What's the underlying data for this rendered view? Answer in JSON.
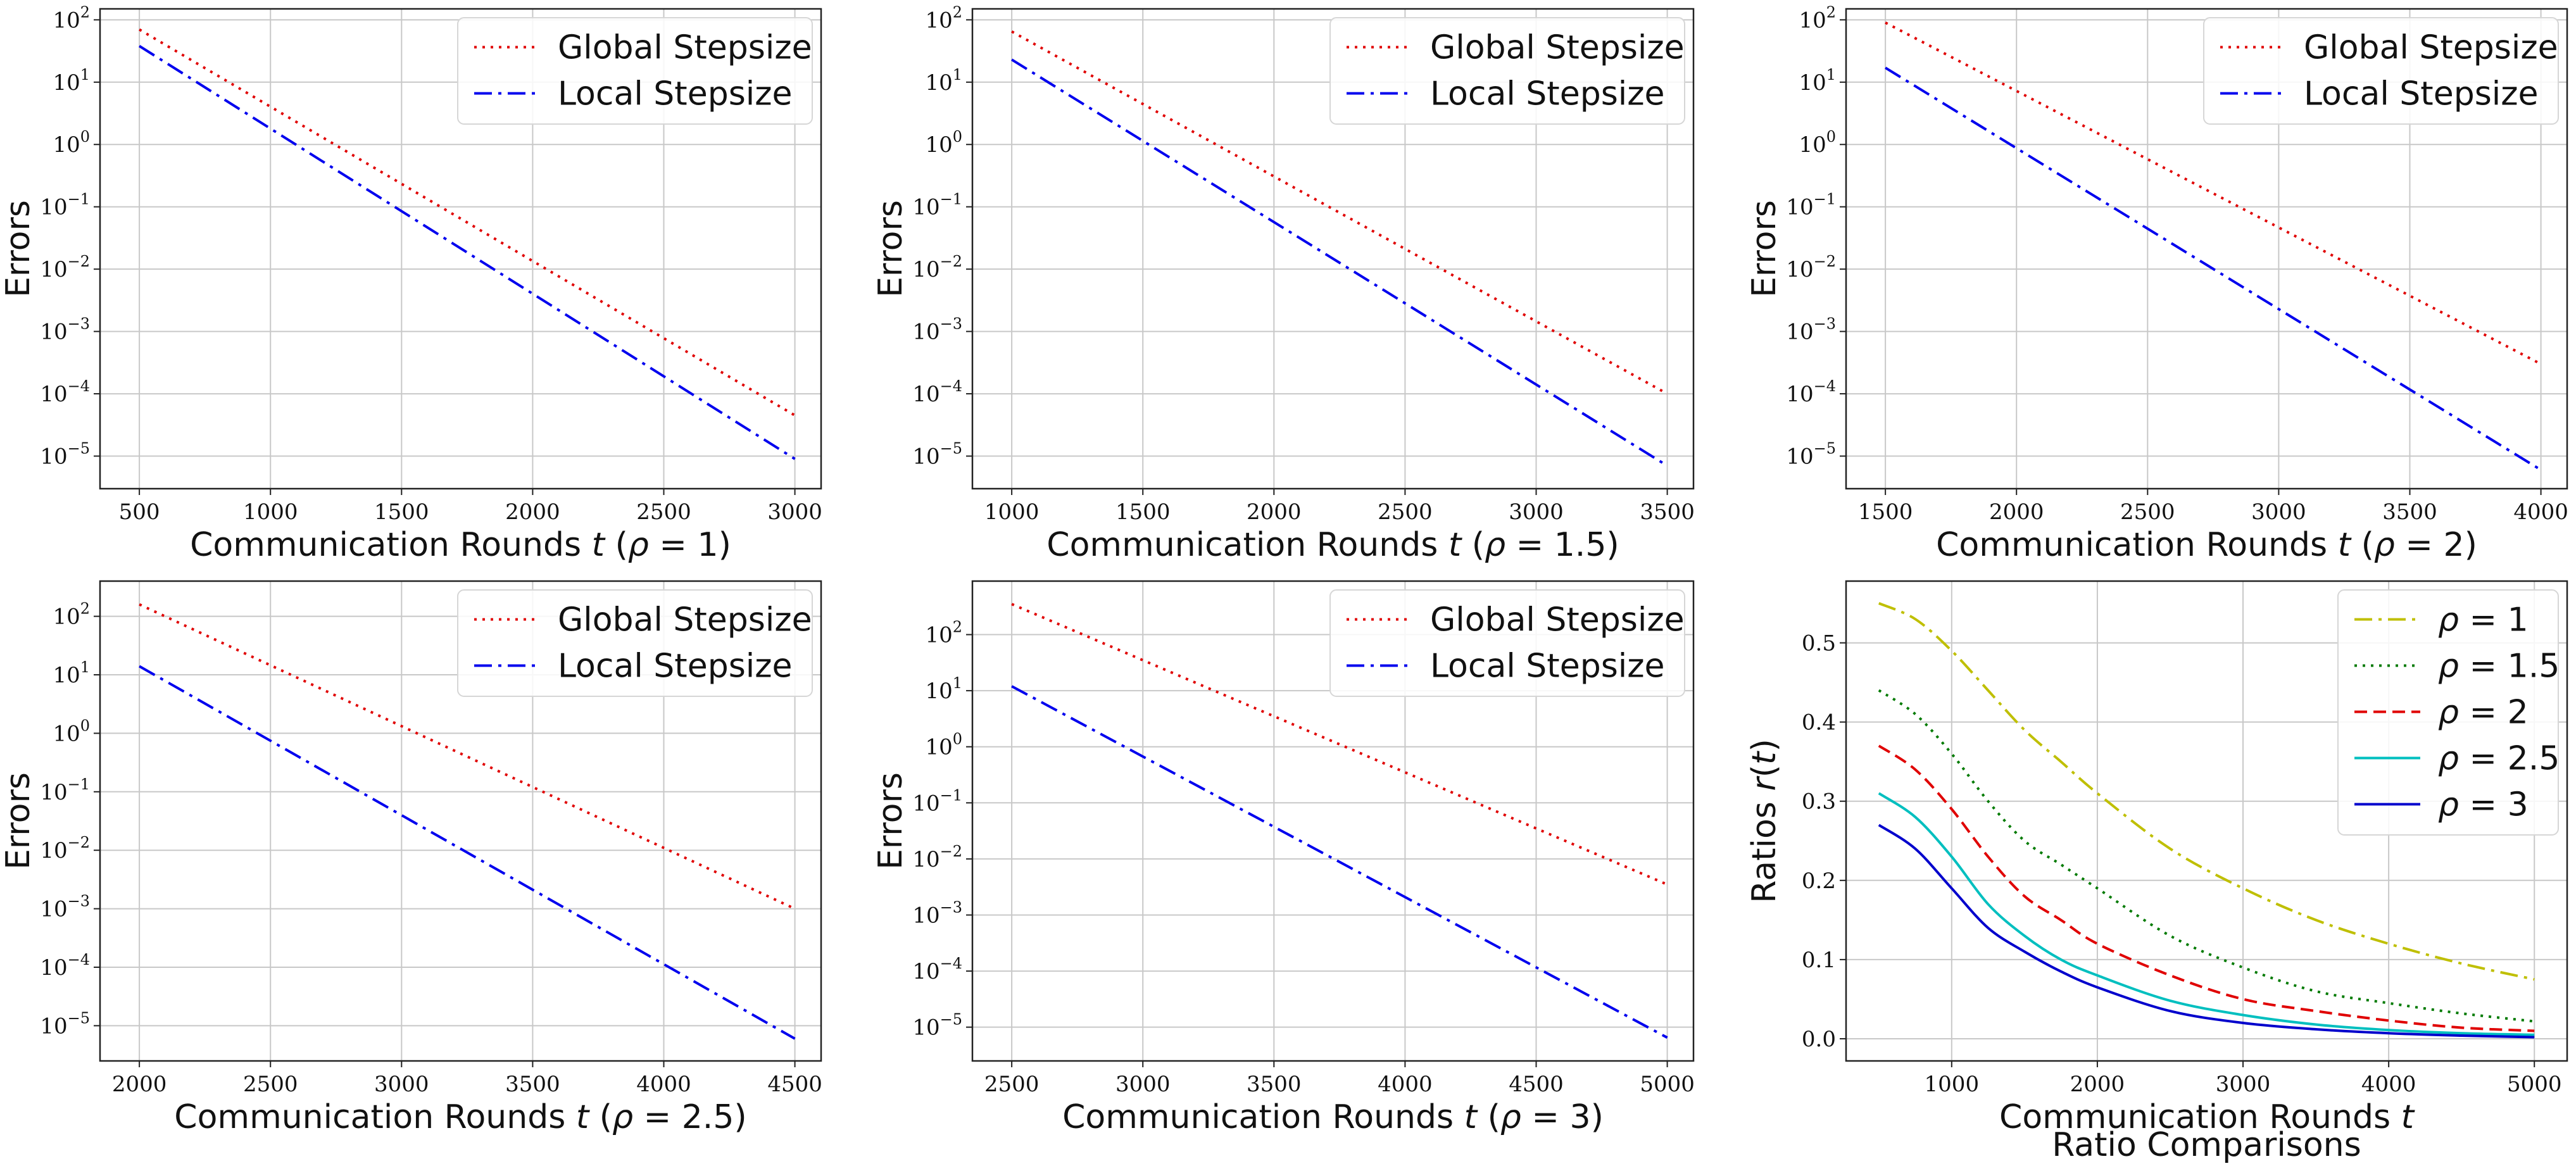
{
  "colors": {
    "global": "#e00000",
    "local": "#0000ee",
    "rho1": "#bfbf00",
    "rho15": "#007a00",
    "rho2": "#e00000",
    "rho25": "#00bfbf",
    "rho3": "#0000cc"
  },
  "chart_data": [
    {
      "type": "line",
      "yscale": "log",
      "xlabel": "Communication Rounds t (ρ = 1)",
      "ylabel": "Errors",
      "xlim": [
        350,
        3100
      ],
      "ylim": [
        3e-06,
        150
      ],
      "xticks": [
        500,
        1000,
        1500,
        2000,
        2500,
        3000
      ],
      "yticks": [
        1e-05,
        0.0001,
        0.001,
        0.01,
        0.1,
        1,
        10,
        100
      ],
      "legend": "top-right",
      "grid": true,
      "series": [
        {
          "name": "Global Stepsize",
          "x": [
            500,
            3000
          ],
          "y": [
            70,
            4.5e-05
          ]
        },
        {
          "name": "Local Stepsize",
          "x": [
            500,
            3000
          ],
          "y": [
            38,
            9e-06
          ]
        }
      ]
    },
    {
      "type": "line",
      "yscale": "log",
      "xlabel": "Communication Rounds t (ρ = 1.5)",
      "ylabel": "Errors",
      "xlim": [
        850,
        3600
      ],
      "ylim": [
        3e-06,
        150
      ],
      "xticks": [
        1000,
        1500,
        2000,
        2500,
        3000,
        3500
      ],
      "yticks": [
        1e-05,
        0.0001,
        0.001,
        0.01,
        0.1,
        1,
        10,
        100
      ],
      "legend": "top-right",
      "grid": true,
      "series": [
        {
          "name": "Global Stepsize",
          "x": [
            1000,
            3500
          ],
          "y": [
            65,
            0.0001
          ]
        },
        {
          "name": "Local Stepsize",
          "x": [
            1000,
            3500
          ],
          "y": [
            23,
            7e-06
          ]
        }
      ]
    },
    {
      "type": "line",
      "yscale": "log",
      "xlabel": "Communication Rounds t (ρ = 2)",
      "ylabel": "Errors",
      "xlim": [
        1350,
        4100
      ],
      "ylim": [
        3e-06,
        150
      ],
      "xticks": [
        1500,
        2000,
        2500,
        3000,
        3500,
        4000
      ],
      "yticks": [
        1e-05,
        0.0001,
        0.001,
        0.01,
        0.1,
        1,
        10,
        100
      ],
      "legend": "top-right",
      "grid": true,
      "series": [
        {
          "name": "Global Stepsize",
          "x": [
            1500,
            4000
          ],
          "y": [
            90,
            0.0003
          ]
        },
        {
          "name": "Local Stepsize",
          "x": [
            1500,
            4000
          ],
          "y": [
            17,
            6e-06
          ]
        }
      ]
    },
    {
      "type": "line",
      "yscale": "log",
      "xlabel": "Communication Rounds t (ρ = 2.5)",
      "ylabel": "Errors",
      "xlim": [
        1850,
        4600
      ],
      "ylim": [
        2.5e-06,
        400
      ],
      "xticks": [
        2000,
        2500,
        3000,
        3500,
        4000,
        4500
      ],
      "yticks": [
        1e-05,
        0.0001,
        0.001,
        0.01,
        0.1,
        1,
        10,
        100
      ],
      "legend": "top-right",
      "grid": true,
      "series": [
        {
          "name": "Global Stepsize",
          "x": [
            2000,
            4500
          ],
          "y": [
            160,
            0.001
          ]
        },
        {
          "name": "Local Stepsize",
          "x": [
            2000,
            4500
          ],
          "y": [
            14,
            6e-06
          ]
        }
      ]
    },
    {
      "type": "line",
      "yscale": "log",
      "xlabel": "Communication Rounds t (ρ = 3)",
      "ylabel": "Errors",
      "xlim": [
        2350,
        5100
      ],
      "ylim": [
        2.5e-06,
        900
      ],
      "xticks": [
        2500,
        3000,
        3500,
        4000,
        4500,
        5000
      ],
      "yticks": [
        1e-05,
        0.0001,
        0.001,
        0.01,
        0.1,
        1,
        10,
        100
      ],
      "legend": "top-right",
      "grid": true,
      "series": [
        {
          "name": "Global Stepsize",
          "x": [
            2500,
            5000
          ],
          "y": [
            350,
            0.0035
          ]
        },
        {
          "name": "Local Stepsize",
          "x": [
            2500,
            5000
          ],
          "y": [
            12,
            6.5e-06
          ]
        }
      ]
    },
    {
      "type": "line",
      "yscale": "linear",
      "title": "Ratio Comparisons",
      "xlabel": "Communication Rounds t",
      "ylabel": "Ratios r(t)",
      "xlim": [
        275,
        5225
      ],
      "ylim": [
        -0.028,
        0.578
      ],
      "xticks": [
        1000,
        2000,
        3000,
        4000,
        5000
      ],
      "yticks": [
        0.0,
        0.1,
        0.2,
        0.3,
        0.4,
        0.5
      ],
      "legend": "top-right",
      "grid": true,
      "series": [
        {
          "name": "ρ = 1",
          "x": [
            500,
            750,
            1000,
            1250,
            1500,
            1750,
            2000,
            2500,
            3000,
            3500,
            4000,
            4500,
            5000
          ],
          "y": [
            0.55,
            0.53,
            0.49,
            0.44,
            0.39,
            0.35,
            0.31,
            0.24,
            0.19,
            0.15,
            0.12,
            0.095,
            0.075
          ]
        },
        {
          "name": "ρ = 1.5",
          "x": [
            500,
            750,
            1000,
            1250,
            1500,
            1750,
            2000,
            2500,
            3000,
            3500,
            4000,
            4500,
            5000
          ],
          "y": [
            0.44,
            0.41,
            0.36,
            0.3,
            0.25,
            0.22,
            0.19,
            0.13,
            0.09,
            0.06,
            0.045,
            0.032,
            0.022
          ]
        },
        {
          "name": "ρ = 2",
          "x": [
            500,
            750,
            1000,
            1250,
            1500,
            1750,
            2000,
            2500,
            3000,
            3500,
            4000,
            4500,
            5000
          ],
          "y": [
            0.37,
            0.34,
            0.29,
            0.23,
            0.18,
            0.15,
            0.12,
            0.08,
            0.05,
            0.035,
            0.023,
            0.014,
            0.01
          ]
        },
        {
          "name": "ρ = 2.5",
          "x": [
            500,
            750,
            1000,
            1250,
            1500,
            1750,
            2000,
            2500,
            3000,
            3500,
            4000,
            4500,
            5000
          ],
          "y": [
            0.31,
            0.28,
            0.23,
            0.17,
            0.13,
            0.1,
            0.08,
            0.048,
            0.03,
            0.018,
            0.011,
            0.007,
            0.005
          ]
        },
        {
          "name": "ρ = 3",
          "x": [
            500,
            750,
            1000,
            1250,
            1500,
            1750,
            2000,
            2500,
            3000,
            3500,
            4000,
            4500,
            5000
          ],
          "y": [
            0.27,
            0.24,
            0.19,
            0.14,
            0.11,
            0.085,
            0.065,
            0.035,
            0.02,
            0.012,
            0.007,
            0.004,
            0.002
          ]
        }
      ]
    }
  ]
}
